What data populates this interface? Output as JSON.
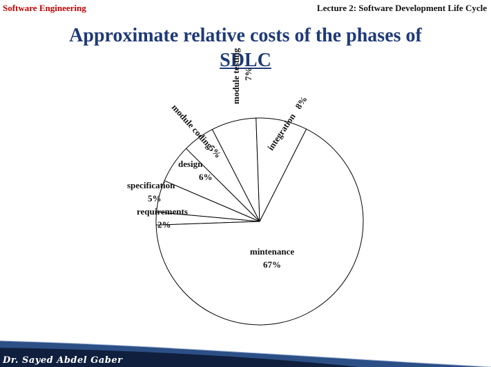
{
  "header": {
    "left": "Software Engineering",
    "right": "Lecture 2: Software Development Life Cycle"
  },
  "title": {
    "line1": "Approximate relative costs of the phases of",
    "line2": "SDLC"
  },
  "footer": {
    "signature": "Dr. Sayed Abdel Gaber"
  },
  "colors": {
    "header_left": "#c00000",
    "title": "#1f3a78",
    "band_dark": "#0f1f3d",
    "band_mid": "#2c4f86",
    "pie_stroke": "#000000",
    "pie_fill": "#ffffff"
  },
  "chart_data": {
    "type": "pie",
    "categories": [
      "requirements",
      "specification",
      "design",
      "module coding",
      "module testing",
      "integration",
      "mintenance"
    ],
    "values": [
      2,
      5,
      6,
      5,
      7,
      8,
      67
    ],
    "labels": [
      {
        "name": "requirements",
        "value": "2%"
      },
      {
        "name": "specification",
        "value": "5%"
      },
      {
        "name": "design",
        "value": "6%"
      },
      {
        "name": "module coding",
        "value": "5%"
      },
      {
        "name": "module testing",
        "value": "7%"
      },
      {
        "name": "integration",
        "value": "8%"
      },
      {
        "name": "mintenance",
        "value": "67%"
      }
    ],
    "legend": "none"
  }
}
